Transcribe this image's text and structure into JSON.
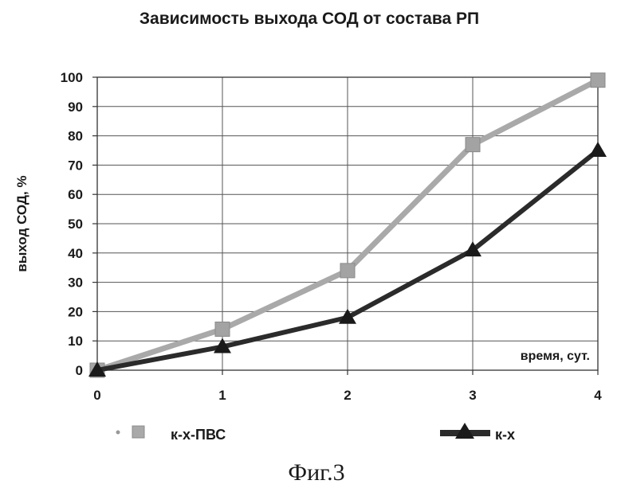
{
  "chart_data": {
    "type": "line",
    "title": "Зависимость выхода СОД от состава РП",
    "xlabel": "время, сут.",
    "ylabel": "выход СОД, %",
    "x": [
      0,
      1,
      2,
      3,
      4
    ],
    "xlim": [
      0,
      4
    ],
    "ylim": [
      0,
      100
    ],
    "yticks": [
      0,
      10,
      20,
      30,
      40,
      50,
      60,
      70,
      80,
      90,
      100
    ],
    "xticks": [
      0,
      1,
      2,
      3,
      4
    ],
    "grid": true,
    "legend_position": "bottom",
    "series": [
      {
        "name": "к-х-ПВС",
        "values": [
          0,
          14,
          34,
          77,
          99
        ],
        "color": "#a9a9a9",
        "marker": "square"
      },
      {
        "name": "к-х",
        "values": [
          0,
          8,
          18,
          41,
          75
        ],
        "color": "#2b2b2b",
        "marker": "triangle"
      }
    ]
  },
  "caption": "Фиг.3"
}
